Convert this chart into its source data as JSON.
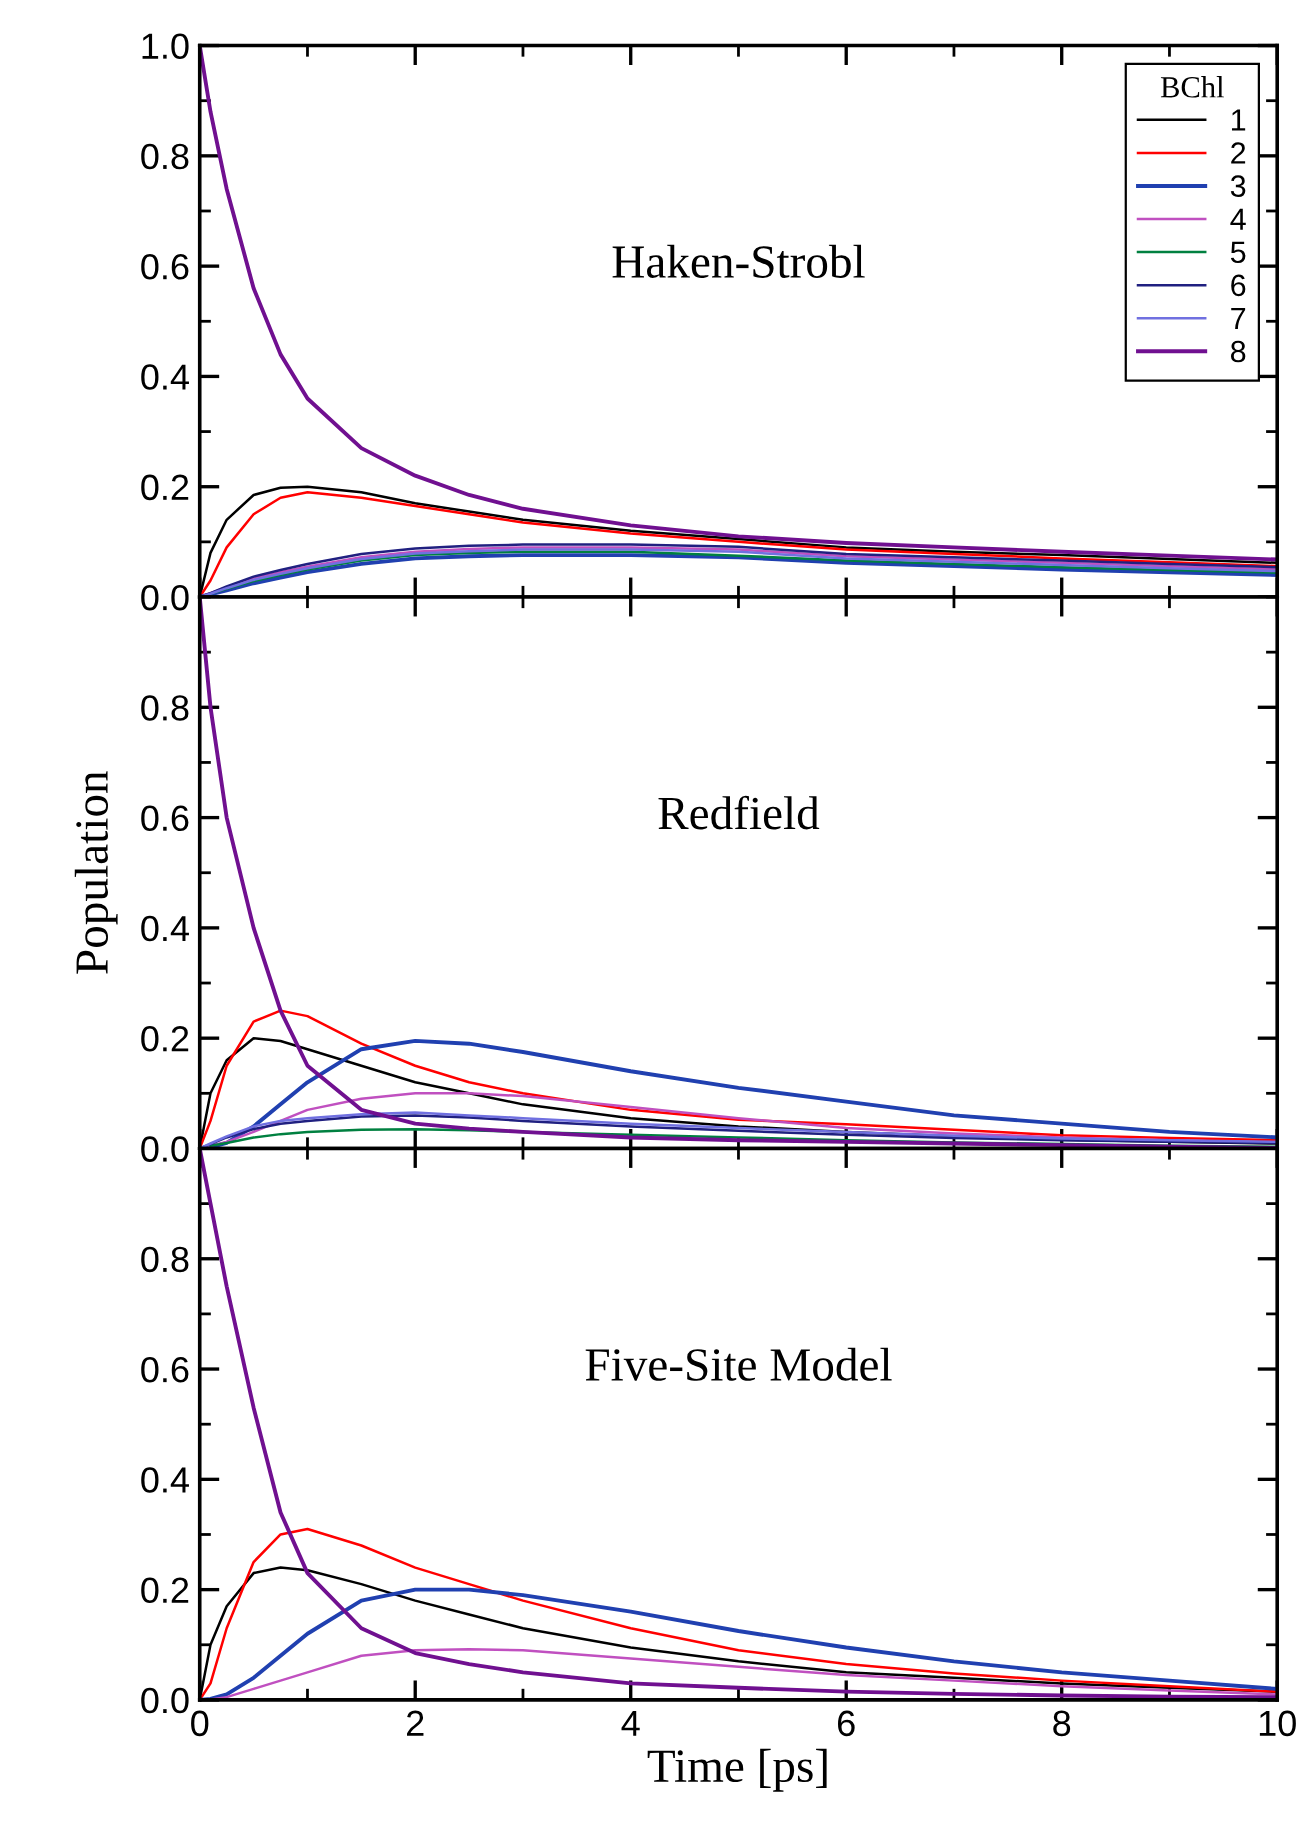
{
  "chart_data": [
    {
      "type": "line",
      "title": "Haken-Strobl",
      "legend_title": "BChl",
      "legend": "top right",
      "tick_labels": "y",
      "x": [
        0,
        0.1,
        0.25,
        0.5,
        0.75,
        1,
        1.5,
        2,
        2.5,
        3,
        4,
        5,
        6,
        7,
        8,
        9,
        10
      ],
      "xlim": [
        0,
        10
      ],
      "xticks": [
        0,
        {
          "value": 1,
          "label": null
        },
        2,
        {
          "value": 3,
          "label": null
        },
        4,
        {
          "value": 5,
          "label": null
        },
        6,
        {
          "value": 7,
          "label": null
        },
        8,
        {
          "value": 9,
          "label": null
        },
        10
      ],
      "ylim": [
        0,
        1.0
      ],
      "yticks": [
        {
          "value": 0,
          "label": "0.0"
        },
        {
          "value": 0.1,
          "label": null
        },
        0.2,
        {
          "value": 0.3,
          "label": null
        },
        0.4,
        {
          "value": 0.5,
          "label": null
        },
        0.6,
        {
          "value": 0.7,
          "label": null
        },
        0.8,
        {
          "value": 0.9,
          "label": null
        },
        {
          "value": 1.0,
          "label": "1.0"
        }
      ],
      "series": [
        {
          "name": "1",
          "color": "#000000",
          "values": [
            0,
            0.08,
            0.14,
            0.185,
            0.198,
            0.2,
            0.19,
            0.17,
            0.155,
            0.14,
            0.12,
            0.105,
            0.09,
            0.082,
            0.076,
            0.069,
            0.062
          ]
        },
        {
          "name": "2",
          "color": "#ff0000",
          "values": [
            0,
            0.03,
            0.09,
            0.15,
            0.18,
            0.19,
            0.18,
            0.165,
            0.15,
            0.135,
            0.115,
            0.1,
            0.086,
            0.078,
            0.07,
            0.063,
            0.056
          ]
        },
        {
          "name": "3",
          "color": "#2040b0",
          "values": [
            0,
            0.005,
            0.012,
            0.025,
            0.035,
            0.045,
            0.06,
            0.07,
            0.074,
            0.076,
            0.076,
            0.072,
            0.062,
            0.056,
            0.05,
            0.045,
            0.04
          ]
        },
        {
          "name": "4",
          "color": "#c050c0",
          "values": [
            0,
            0.007,
            0.018,
            0.034,
            0.045,
            0.055,
            0.072,
            0.082,
            0.087,
            0.09,
            0.09,
            0.086,
            0.074,
            0.068,
            0.062,
            0.056,
            0.05
          ]
        },
        {
          "name": "5",
          "color": "#008040",
          "values": [
            null,
            0.006,
            0.015,
            0.029,
            0.04,
            0.05,
            0.066,
            0.076,
            0.08,
            0.082,
            0.082,
            0.075,
            0.066,
            0.06,
            0.054,
            0.049,
            0.044
          ]
        },
        {
          "name": "6",
          "color": "#202080",
          "values": [
            0,
            0.007,
            0.019,
            0.037,
            0.049,
            0.06,
            0.078,
            0.088,
            0.093,
            0.095,
            0.095,
            0.091,
            0.078,
            0.072,
            0.066,
            0.06,
            0.054
          ]
        },
        {
          "name": "7",
          "color": "#7070e0",
          "values": [
            0,
            0.006,
            0.016,
            0.031,
            0.042,
            0.052,
            0.069,
            0.079,
            0.083,
            0.086,
            0.086,
            0.082,
            0.07,
            0.064,
            0.058,
            0.052,
            0.047
          ]
        },
        {
          "name": "8",
          "color": "#701090",
          "values": [
            1.0,
            0.88,
            0.74,
            0.56,
            0.44,
            0.36,
            0.27,
            0.22,
            0.185,
            0.16,
            0.13,
            0.11,
            0.098,
            0.09,
            0.082,
            0.075,
            0.068
          ]
        }
      ]
    },
    {
      "type": "line",
      "title": "Redfield",
      "ylabel": "Population",
      "tick_labels": "y",
      "x": [
        0,
        0.1,
        0.25,
        0.5,
        0.75,
        1,
        1.5,
        2,
        2.5,
        3,
        4,
        5,
        6,
        7,
        8,
        9,
        10
      ],
      "xlim": [
        0,
        10
      ],
      "xticks": [
        0,
        {
          "value": 1,
          "label": null
        },
        2,
        {
          "value": 3,
          "label": null
        },
        4,
        {
          "value": 5,
          "label": null
        },
        6,
        {
          "value": 7,
          "label": null
        },
        8,
        {
          "value": 9,
          "label": null
        },
        10
      ],
      "ylim": [
        0,
        1.0
      ],
      "yticks": [
        {
          "value": 0,
          "label": "0.0"
        },
        {
          "value": 0.1,
          "label": null
        },
        0.2,
        {
          "value": 0.3,
          "label": null
        },
        0.4,
        {
          "value": 0.5,
          "label": null
        },
        0.6,
        {
          "value": 0.7,
          "label": null
        },
        0.8,
        {
          "value": 0.9,
          "label": null
        },
        {
          "value": 1.0,
          "label": null
        }
      ],
      "series": [
        {
          "color": "#000000",
          "values": [
            0,
            0.1,
            0.16,
            0.2,
            0.195,
            0.18,
            0.15,
            0.12,
            0.1,
            0.08,
            0.055,
            0.04,
            0.03,
            0.022,
            0.016,
            0.012,
            0.009
          ]
        },
        {
          "color": "#ff0000",
          "values": [
            0,
            0.05,
            0.15,
            0.23,
            0.25,
            0.24,
            0.19,
            0.15,
            0.12,
            0.1,
            0.07,
            0.052,
            0.044,
            0.034,
            0.024,
            0.019,
            0.015
          ]
        },
        {
          "color": "#2040b0",
          "values": [
            0,
            0.002,
            0.01,
            0.04,
            0.08,
            0.12,
            0.18,
            0.195,
            0.19,
            0.175,
            0.14,
            0.11,
            0.085,
            0.06,
            0.045,
            0.03,
            0.02
          ]
        },
        {
          "color": "#c050c0",
          "values": [
            0,
            0.005,
            0.012,
            0.03,
            0.05,
            0.07,
            0.09,
            0.1,
            0.1,
            0.095,
            0.075,
            0.055,
            0.037,
            0.027,
            0.02,
            0.015,
            0.01
          ]
        },
        {
          "color": "#008040",
          "values": [
            null,
            0.005,
            0.01,
            0.02,
            0.026,
            0.03,
            0.034,
            0.035,
            0.033,
            0.03,
            0.025,
            0.02,
            0.015,
            0.011,
            0.008,
            0.005,
            0.003
          ]
        },
        {
          "color": "#202080",
          "values": [
            0,
            0.008,
            0.02,
            0.035,
            0.045,
            0.05,
            0.058,
            0.06,
            0.056,
            0.05,
            0.04,
            0.032,
            0.025,
            0.019,
            0.015,
            0.012,
            0.01
          ]
        },
        {
          "color": "#7070e0",
          "values": [
            0,
            0.009,
            0.022,
            0.04,
            0.05,
            0.055,
            0.062,
            0.065,
            0.06,
            0.055,
            0.045,
            0.037,
            0.03,
            0.023,
            0.018,
            0.015,
            0.012
          ]
        },
        {
          "color": "#701090",
          "values": [
            1.0,
            0.8,
            0.6,
            0.4,
            0.25,
            0.15,
            0.07,
            0.045,
            0.036,
            0.03,
            0.02,
            0.015,
            0.012,
            0.009,
            0.006,
            0.003,
            0.001
          ]
        }
      ]
    },
    {
      "type": "line",
      "title": "Five-Site Model",
      "xlabel": "Time [ps]",
      "x": [
        0,
        0.1,
        0.25,
        0.5,
        0.75,
        1,
        1.5,
        2,
        2.5,
        3,
        4,
        5,
        6,
        7,
        8,
        9,
        10
      ],
      "xlim": [
        0,
        10
      ],
      "xticks": [
        0,
        {
          "value": 1,
          "label": null
        },
        2,
        {
          "value": 3,
          "label": null
        },
        4,
        {
          "value": 5,
          "label": null
        },
        6,
        {
          "value": 7,
          "label": null
        },
        8,
        {
          "value": 9,
          "label": null
        },
        10
      ],
      "ylim": [
        0,
        1.0
      ],
      "yticks": [
        {
          "value": 0,
          "label": "0.0"
        },
        {
          "value": 0.1,
          "label": null
        },
        0.2,
        {
          "value": 0.3,
          "label": null
        },
        0.4,
        {
          "value": 0.5,
          "label": null
        },
        0.6,
        {
          "value": 0.7,
          "label": null
        },
        0.8,
        {
          "value": 0.9,
          "label": null
        },
        {
          "value": 1.0,
          "label": null
        }
      ],
      "series": [
        {
          "color": "#000000",
          "values": [
            0,
            0.1,
            0.17,
            0.23,
            0.24,
            0.235,
            0.21,
            0.18,
            0.155,
            0.13,
            0.095,
            0.07,
            0.05,
            0.04,
            0.03,
            0.022,
            0.015
          ]
        },
        {
          "color": "#ff0000",
          "values": [
            0,
            0.03,
            0.13,
            0.25,
            0.3,
            0.31,
            0.28,
            0.24,
            0.21,
            0.18,
            0.13,
            0.09,
            0.065,
            0.048,
            0.035,
            0.025,
            0.015
          ]
        },
        {
          "color": "#2040b0",
          "values": [
            0,
            0.002,
            0.01,
            0.04,
            0.08,
            0.12,
            0.18,
            0.2,
            0.2,
            0.19,
            0.16,
            0.125,
            0.095,
            0.07,
            0.05,
            0.035,
            0.02
          ]
        },
        {
          "color": "#c050c0",
          "values": [
            null,
            0.001,
            0.005,
            0.02,
            0.035,
            0.05,
            0.08,
            0.09,
            0.092,
            0.09,
            0.075,
            0.06,
            0.045,
            0.035,
            0.025,
            0.017,
            0.01
          ]
        },
        {
          "color": "#701090",
          "values": [
            1.0,
            0.9,
            0.75,
            0.53,
            0.34,
            0.23,
            0.13,
            0.085,
            0.065,
            0.05,
            0.03,
            0.022,
            0.015,
            0.011,
            0.008,
            0.006,
            0.005
          ]
        }
      ]
    }
  ]
}
